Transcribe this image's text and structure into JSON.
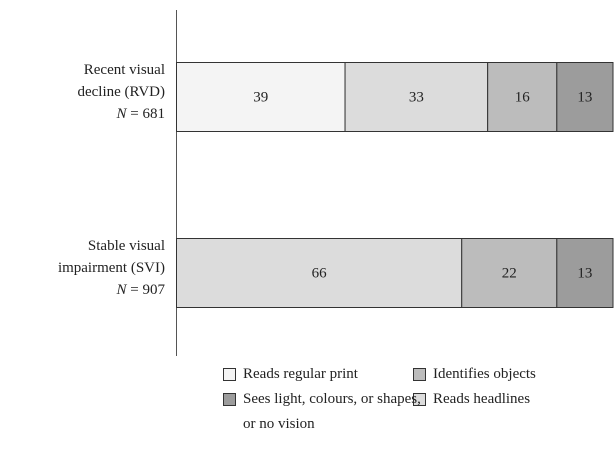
{
  "chart_data": {
    "type": "stacked-bar-horizontal",
    "categories": [
      "Recent visual decline (RVD)",
      "Stable visual impairment (SVI)"
    ],
    "sample_size_labels": [
      "N = 681",
      "N = 907"
    ],
    "series": [
      {
        "name": "Reads regular print",
        "color": "#f4f4f4",
        "values": [
          39,
          null
        ]
      },
      {
        "name": "Reads headlines",
        "color": "#dcdcdc",
        "values": [
          33,
          66
        ]
      },
      {
        "name": "Identifies objects",
        "color": "#bcbcbc",
        "values": [
          16,
          22
        ]
      },
      {
        "name": "Sees light, colours, or shapes, or no vision",
        "color": "#9c9c9c",
        "values": [
          13,
          13
        ]
      }
    ]
  }
}
